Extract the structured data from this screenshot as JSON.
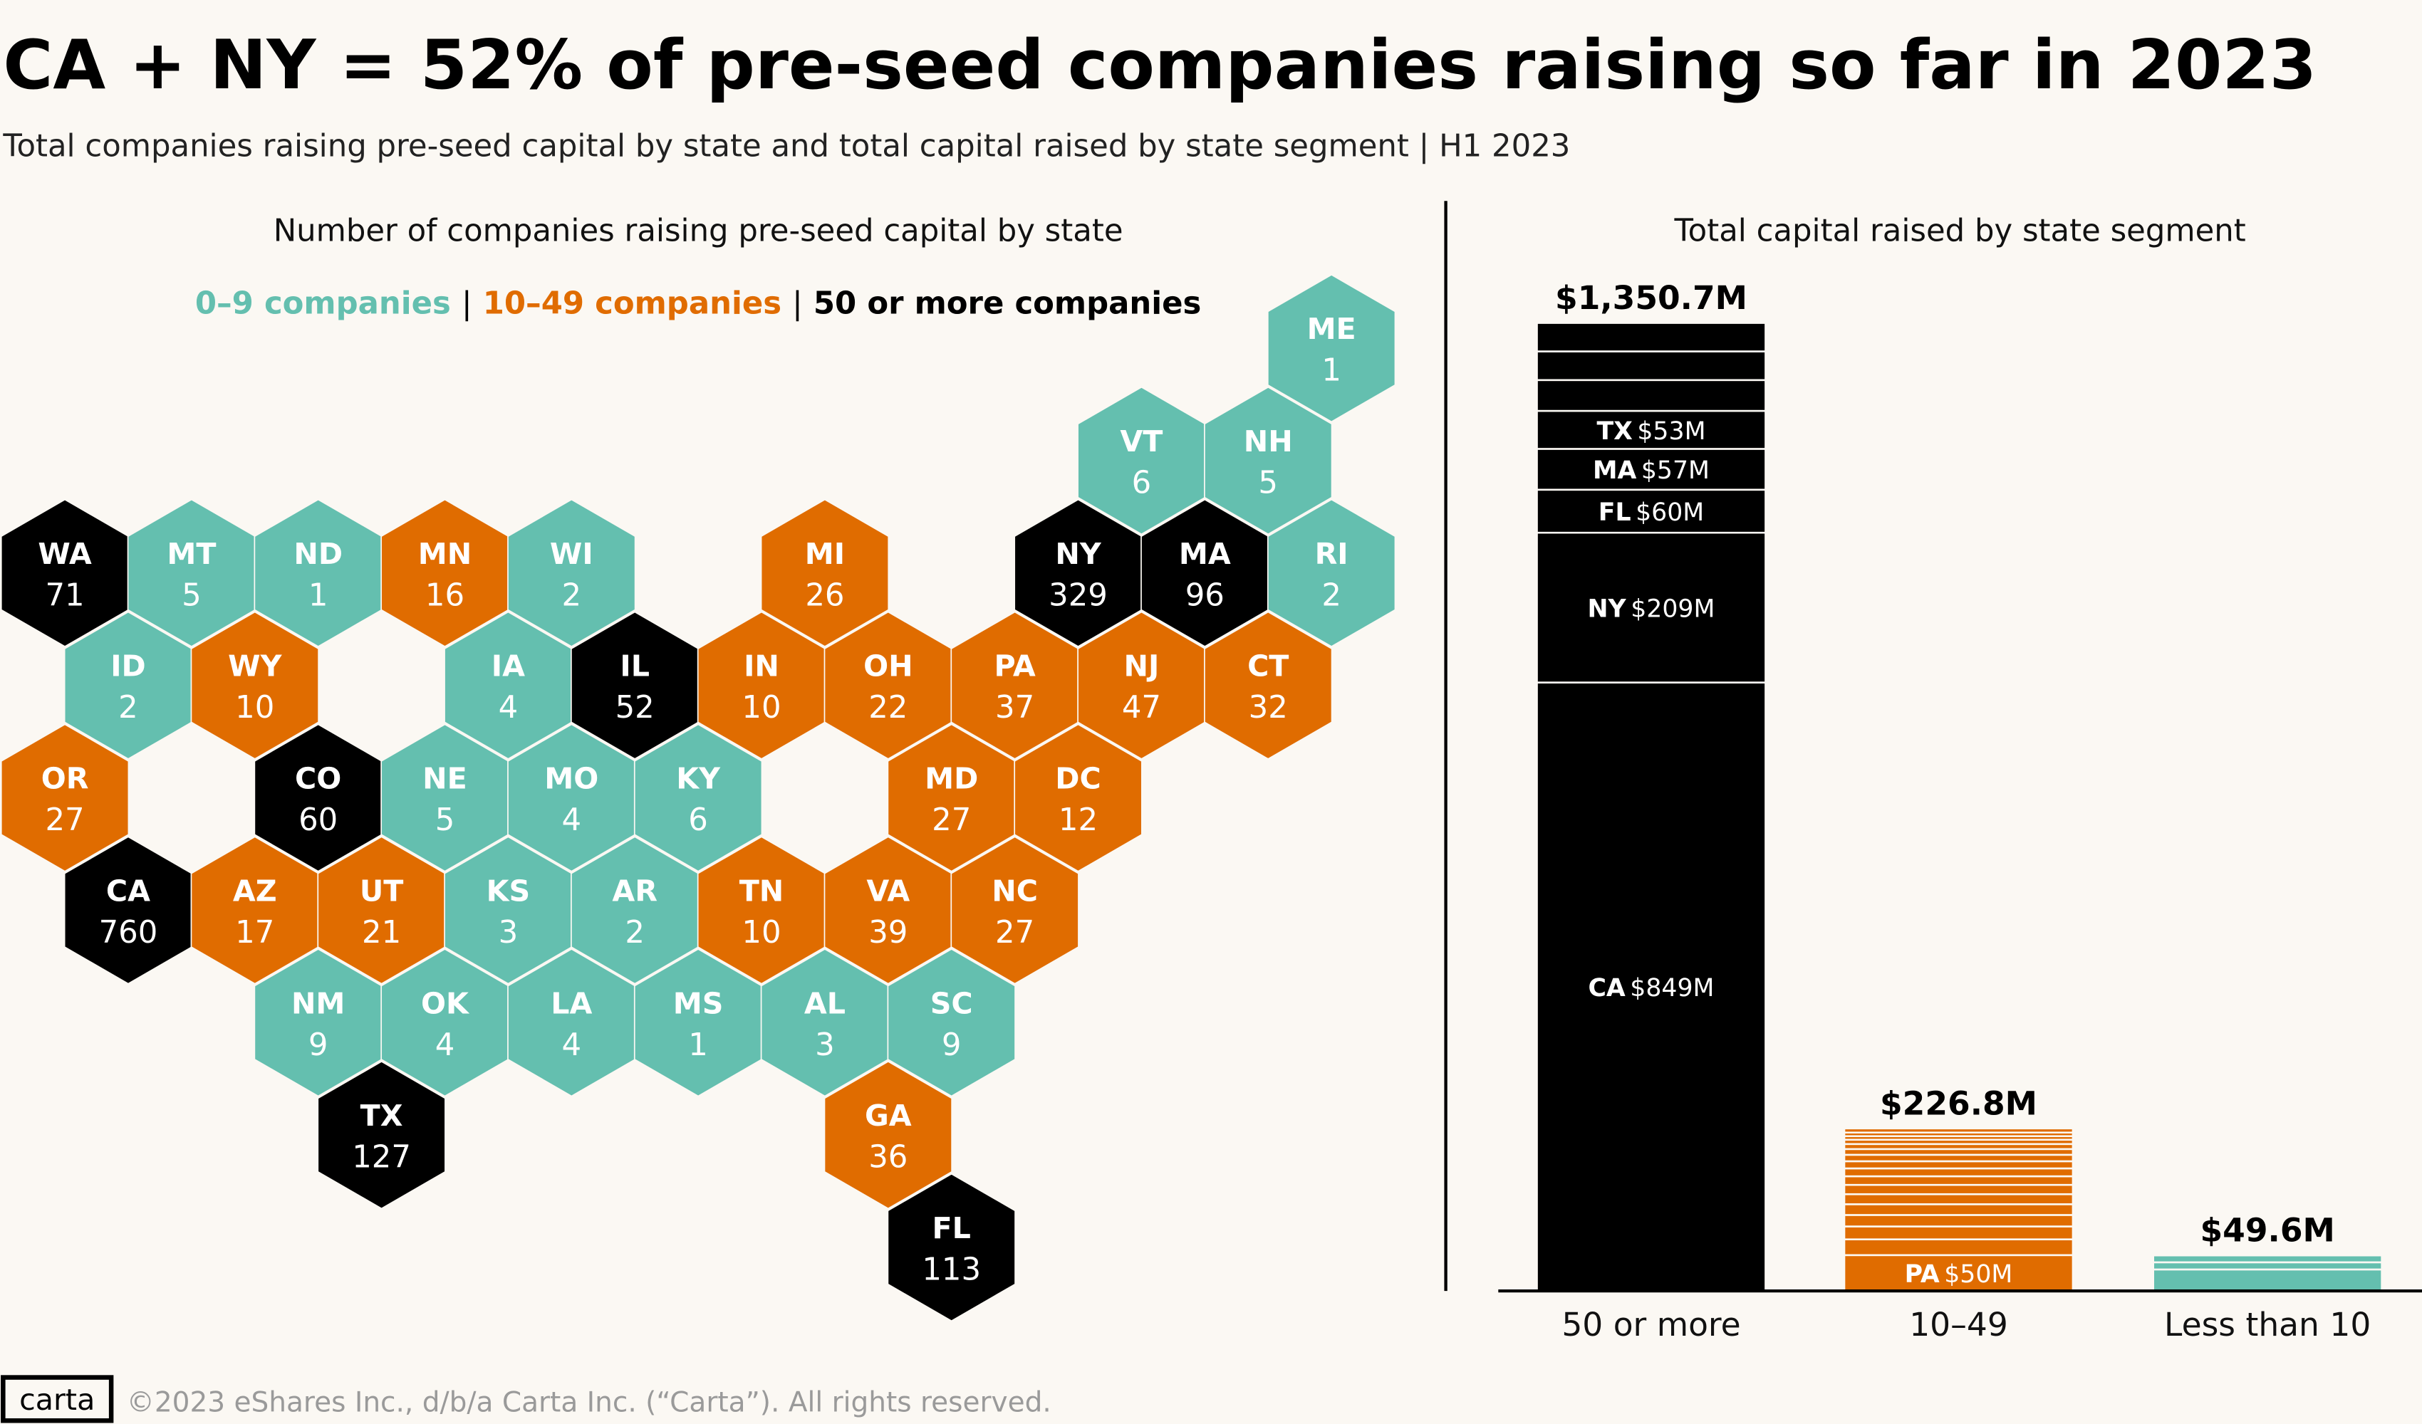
{
  "title": "CA + NY = 52% of pre-seed companies raising so far in 2023",
  "subtitle": "Total companies raising pre-seed capital by state and total capital raised by state segment  |  H1 2023",
  "colors": {
    "low": "#64BFAF",
    "mid": "#E06C00",
    "high": "#000000",
    "background": "#FBF8F3"
  },
  "chart_data": [
    {
      "type": "hex-map",
      "title": "Number of companies raising pre-seed capital by state",
      "legend": {
        "low": "0–9 companies",
        "separator": "|",
        "mid": "10–49 companies",
        "high": "50 or more companies"
      },
      "states": [
        {
          "state": "ME",
          "count": 1
        },
        {
          "state": "VT",
          "count": 6
        },
        {
          "state": "NH",
          "count": 5
        },
        {
          "state": "WA",
          "count": 71
        },
        {
          "state": "MT",
          "count": 5
        },
        {
          "state": "ND",
          "count": 1
        },
        {
          "state": "MN",
          "count": 16
        },
        {
          "state": "WI",
          "count": 2
        },
        {
          "state": "MI",
          "count": 26
        },
        {
          "state": "NY",
          "count": 329
        },
        {
          "state": "MA",
          "count": 96
        },
        {
          "state": "RI",
          "count": 2
        },
        {
          "state": "ID",
          "count": 2
        },
        {
          "state": "WY",
          "count": 10
        },
        {
          "state": "IA",
          "count": 4
        },
        {
          "state": "IL",
          "count": 52
        },
        {
          "state": "IN",
          "count": 10
        },
        {
          "state": "OH",
          "count": 22
        },
        {
          "state": "PA",
          "count": 37
        },
        {
          "state": "NJ",
          "count": 47
        },
        {
          "state": "CT",
          "count": 32
        },
        {
          "state": "OR",
          "count": 27
        },
        {
          "state": "CO",
          "count": 60
        },
        {
          "state": "NE",
          "count": 5
        },
        {
          "state": "MO",
          "count": 4
        },
        {
          "state": "KY",
          "count": 6
        },
        {
          "state": "MD",
          "count": 27
        },
        {
          "state": "DC",
          "count": 12
        },
        {
          "state": "CA",
          "count": 760
        },
        {
          "state": "AZ",
          "count": 17
        },
        {
          "state": "UT",
          "count": 21
        },
        {
          "state": "KS",
          "count": 3
        },
        {
          "state": "AR",
          "count": 2
        },
        {
          "state": "TN",
          "count": 10
        },
        {
          "state": "VA",
          "count": 39
        },
        {
          "state": "NC",
          "count": 27
        },
        {
          "state": "NM",
          "count": 9
        },
        {
          "state": "OK",
          "count": 4
        },
        {
          "state": "LA",
          "count": 4
        },
        {
          "state": "MS",
          "count": 1
        },
        {
          "state": "AL",
          "count": 3
        },
        {
          "state": "SC",
          "count": 9
        },
        {
          "state": "TX",
          "count": 127
        },
        {
          "state": "GA",
          "count": 36
        },
        {
          "state": "FL",
          "count": 113
        }
      ]
    },
    {
      "type": "stacked-bar",
      "title": "Total capital raised by state segment",
      "unit": "$M",
      "categories": [
        "50 or more",
        "10–49",
        "Less than 10"
      ],
      "totals": [
        1350.7,
        226.8,
        49.6
      ],
      "total_labels": [
        "$1,350.7M",
        "$226.8M",
        "$49.6M"
      ],
      "segments": [
        [
          {
            "state": "CA",
            "value": 849,
            "label": "$849M"
          },
          {
            "state": "NY",
            "value": 209,
            "label": "$209M"
          },
          {
            "state": "FL",
            "value": 60,
            "label": "$60M"
          },
          {
            "state": "MA",
            "value": 57,
            "label": "$57M"
          },
          {
            "state": "TX",
            "value": 53,
            "label": "$53M"
          },
          {
            "value": 43
          },
          {
            "value": 40
          },
          {
            "value": 39.7
          }
        ],
        [
          {
            "state": "PA",
            "value": 50,
            "label": "$50M"
          },
          {
            "value": 22
          },
          {
            "value": 18
          },
          {
            "value": 16
          },
          {
            "value": 15
          },
          {
            "value": 14
          },
          {
            "value": 13
          },
          {
            "value": 12
          },
          {
            "value": 11
          },
          {
            "value": 10
          },
          {
            "value": 9
          },
          {
            "value": 8
          },
          {
            "value": 7
          },
          {
            "value": 6
          },
          {
            "value": 5
          },
          {
            "value": 5
          },
          {
            "value": 5.8
          }
        ],
        [
          {
            "value": 30
          },
          {
            "value": 10
          },
          {
            "value": 9.6
          }
        ]
      ]
    }
  ],
  "footer": {
    "logo": "carta",
    "copyright": "©2023 eShares Inc., d/b/a Carta Inc. (“Carta”). All rights reserved."
  }
}
